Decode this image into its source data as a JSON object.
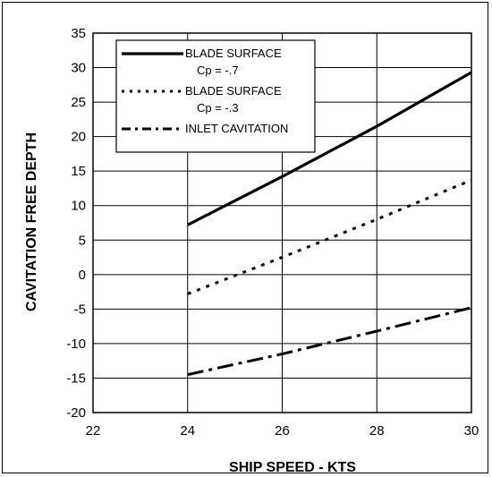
{
  "chart_data": {
    "type": "line",
    "title": "",
    "xlabel": "SHIP SPEED - KTS",
    "ylabel": "CAVITATION FREE DEPTH",
    "xlim": [
      22,
      30
    ],
    "ylim": [
      -20,
      35
    ],
    "xticks": [
      22,
      24,
      26,
      28,
      30
    ],
    "yticks": [
      -20,
      -15,
      -10,
      -5,
      0,
      5,
      10,
      15,
      20,
      25,
      30,
      35
    ],
    "grid": true,
    "legend_position": "top-left",
    "series": [
      {
        "name": "BLADE SURFACE",
        "name_line2": "Cp = -.7",
        "style": "solid",
        "color": "#000000",
        "x": [
          24,
          26,
          28,
          30
        ],
        "y": [
          7.2,
          14.2,
          21.5,
          29.3
        ]
      },
      {
        "name": "BLADE SURFACE",
        "name_line2": "Cp = -.3",
        "style": "dotted",
        "color": "#000000",
        "x": [
          24,
          26,
          28,
          30
        ],
        "y": [
          -2.8,
          2.5,
          8.0,
          13.7
        ]
      },
      {
        "name": "INLET CAVITATION",
        "name_line2": "",
        "style": "dashdot",
        "color": "#000000",
        "x": [
          24,
          26,
          28,
          30
        ],
        "y": [
          -14.5,
          -11.5,
          -8.2,
          -4.8
        ]
      }
    ]
  }
}
